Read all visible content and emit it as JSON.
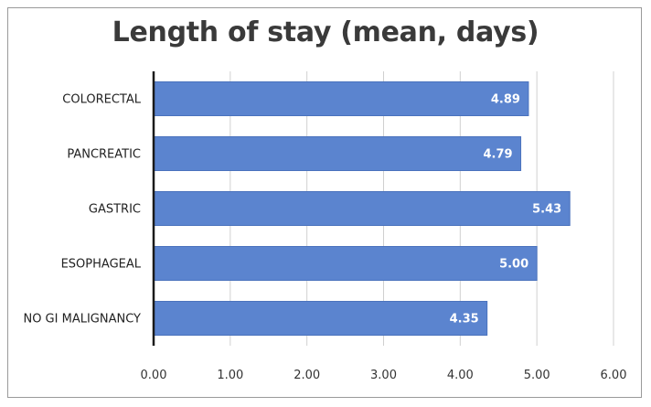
{
  "chart_data": {
    "type": "bar",
    "orientation": "horizontal",
    "title": "Length of stay (mean, days)",
    "categories": [
      "COLORECTAL",
      "PANCREATIC",
      "GASTRIC",
      "ESOPHAGEAL",
      "NO GI MALIGNANCY"
    ],
    "values": [
      4.89,
      4.79,
      5.43,
      5.0,
      4.35
    ],
    "data_labels": [
      "4.89",
      "4.79",
      "5.43",
      "5.00",
      "4.35"
    ],
    "xlim": [
      0,
      6
    ],
    "x_ticks": [
      "0.00",
      "1.00",
      "2.00",
      "3.00",
      "4.00",
      "5.00",
      "6.00"
    ],
    "grid": true,
    "legend": "none",
    "colors": {
      "bar": "#5b84cf",
      "bar_stroke": "#4a72bd",
      "grid": "#d0d0d0",
      "axis": "#1a1a1a"
    }
  }
}
